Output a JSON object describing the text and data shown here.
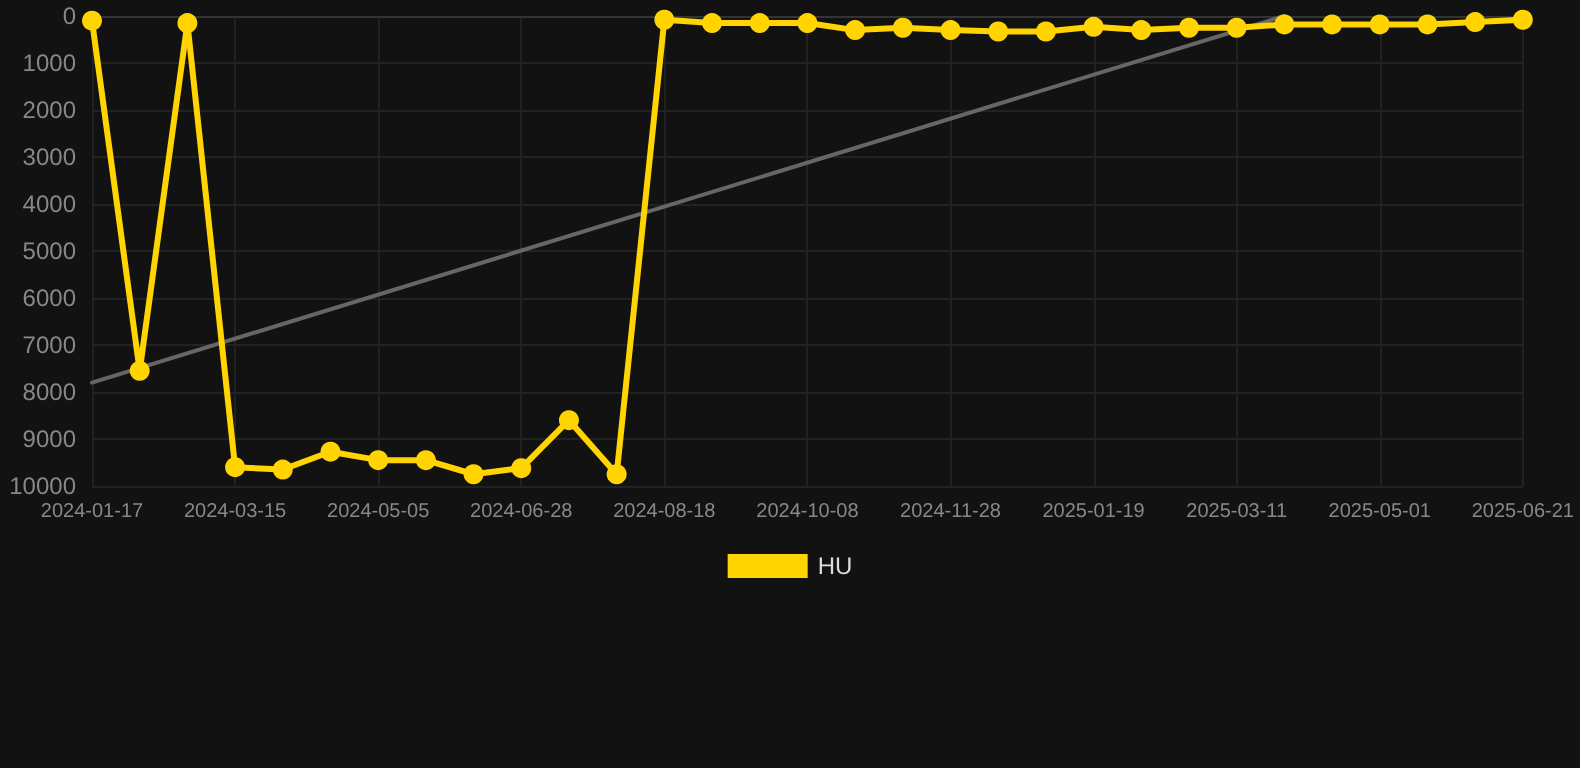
{
  "chart_data": {
    "type": "line",
    "categories": [
      "2024-01-17",
      null,
      null,
      "2024-03-15",
      null,
      null,
      "2024-05-05",
      null,
      null,
      "2024-06-28",
      null,
      null,
      "2024-08-18",
      null,
      null,
      "2024-10-08",
      null,
      null,
      "2024-11-28",
      null,
      null,
      "2025-01-19",
      null,
      null,
      "2025-03-11",
      null,
      null,
      "2025-05-01",
      null,
      null,
      "2025-06-21"
    ],
    "series": [
      {
        "name": "HU",
        "color": "#ffd400",
        "marker": "circle",
        "values": [
          100,
          7550,
          150,
          9600,
          9650,
          9270,
          9450,
          9450,
          9750,
          9620,
          8600,
          9750,
          80,
          150,
          150,
          150,
          300,
          250,
          300,
          330,
          330,
          230,
          300,
          250,
          250,
          180,
          180,
          180,
          180,
          130,
          80
        ]
      },
      {
        "color": "#666666",
        "marker": "none",
        "values": [
          7800,
          null,
          null,
          null,
          null,
          null,
          null,
          null,
          null,
          null,
          null,
          null,
          null,
          null,
          null,
          null,
          null,
          null,
          null,
          null,
          null,
          null,
          null,
          null,
          null,
          0,
          null,
          null,
          null,
          null,
          null
        ]
      }
    ],
    "ylim": [
      10000,
      0
    ],
    "yticks": [
      0,
      1000,
      2000,
      3000,
      4000,
      5000,
      6000,
      7000,
      8000,
      9000,
      10000
    ],
    "grid": true,
    "legend": "bottom",
    "line_style": "solid"
  }
}
